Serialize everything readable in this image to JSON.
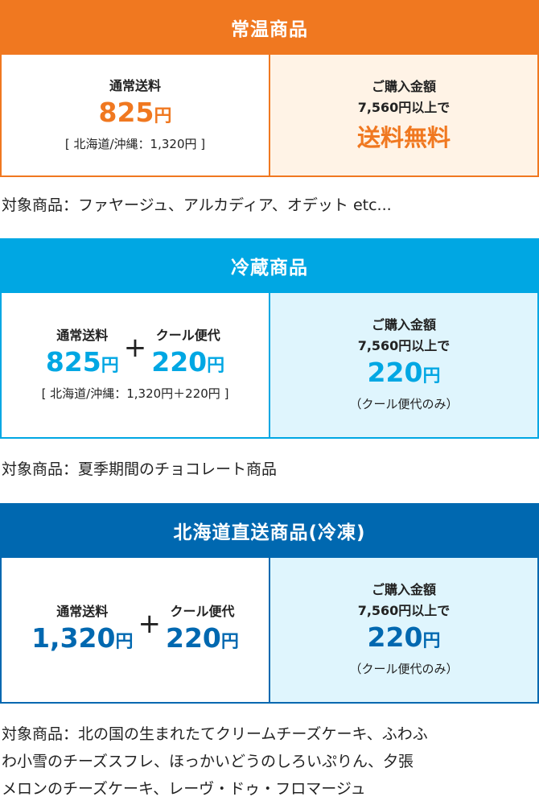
{
  "colors": {
    "ambient": "#F07820",
    "ambient_bg": "#FFF3E6",
    "chilled": "#00A7E3",
    "chilled_bg": "#DFF5FD",
    "frozen": "#0068B0",
    "frozen_bg": "#DFF5FD"
  },
  "sections": [
    {
      "title": "常温商品",
      "normal_label": "通常送料",
      "normal_price": "825",
      "yen": "円",
      "note": "[ 北海道/沖縄：1,320円 ]",
      "cond1": "ご購入金額",
      "cond2": "7,560円以上で",
      "free": "送料無料",
      "caption": "対象商品：ファヤージュ、アルカディア、オデット etc..."
    },
    {
      "title": "冷蔵商品",
      "normal_label": "通常送料",
      "normal_price": "825",
      "cool_label": "クール便代",
      "cool_price": "220",
      "yen": "円",
      "plus": "+",
      "note": "[ 北海道/沖縄：1,320円＋220円 ]",
      "cond1": "ご購入金額",
      "cond2": "7,560円以上で",
      "cond_price": "220",
      "cond_note": "（クール便代のみ）",
      "caption": "対象商品：夏季期間のチョコレート商品"
    },
    {
      "title": "北海道直送商品(冷凍)",
      "normal_label": "通常送料",
      "normal_price": "1,320",
      "cool_label": "クール便代",
      "cool_price": "220",
      "yen": "円",
      "plus": "+",
      "cond1": "ご購入金額",
      "cond2": "7,560円以上で",
      "cond_price": "220",
      "cond_note": "（クール便代のみ）",
      "caption_lines": [
        "対象商品：北の国の生まれたてクリームチーズケーキ、ふわふ",
        "わ小雪のチーズスフレ、ほっかいどうのしろいぷりん、夕張",
        "メロンのチーズケーキ、レーヴ・ドゥ・フロマージュ"
      ]
    }
  ]
}
